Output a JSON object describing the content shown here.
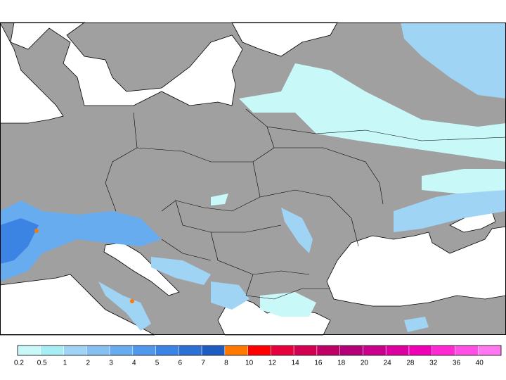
{
  "legend": {
    "ticks": [
      0.2,
      0.5,
      1,
      2,
      3,
      4,
      5,
      6,
      7,
      8,
      10,
      12,
      14,
      16,
      18,
      20,
      24,
      28,
      32,
      36,
      40
    ],
    "colors": [
      "#c8f8f8",
      "#a8ecf4",
      "#a0d4f4",
      "#86c0f0",
      "#68acf0",
      "#5098ec",
      "#3c84e4",
      "#2c70d4",
      "#1e5cc0",
      "#ff7800",
      "#ff0000",
      "#e6003c",
      "#d20050",
      "#be0064",
      "#b40078",
      "#c8008c",
      "#dc00a0",
      "#f000b4",
      "#ff28d2",
      "#ff50e6",
      "#ff78f0"
    ]
  }
}
